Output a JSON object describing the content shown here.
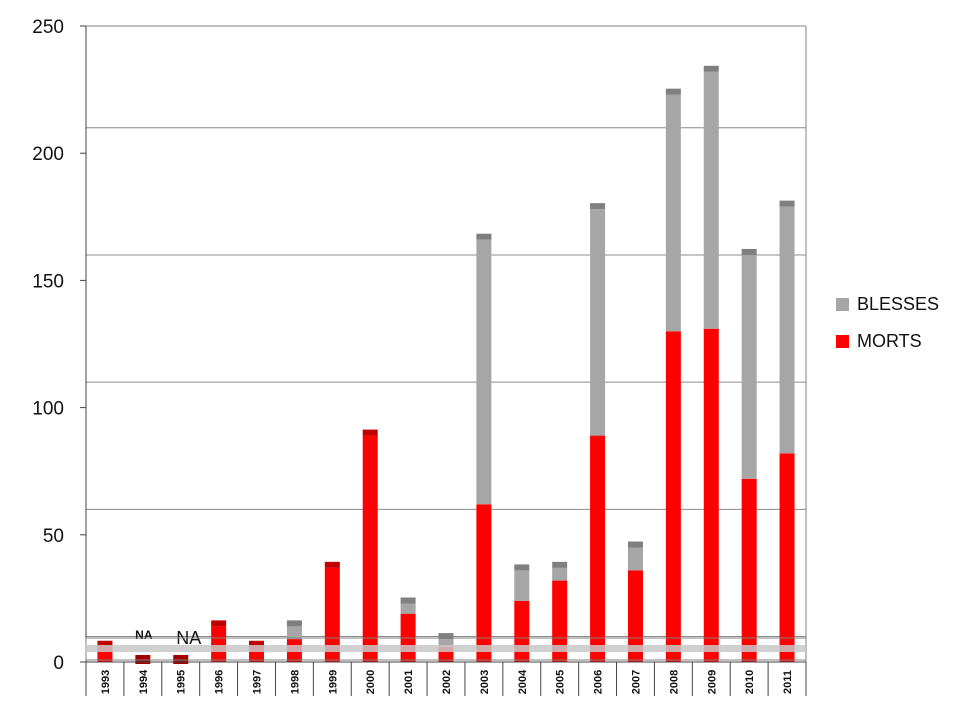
{
  "chart_data": {
    "type": "bar",
    "stacked": true,
    "categories": [
      "1993",
      "1994",
      "1995",
      "1996",
      "1997",
      "1998",
      "1999",
      "2000",
      "2001",
      "2002",
      "2003",
      "2004",
      "2005",
      "2006",
      "2007",
      "2008",
      "2009",
      "2010",
      "2011"
    ],
    "series": [
      {
        "name": "MORTS",
        "color": "#ff0000",
        "values": [
          6,
          null,
          null,
          14,
          6,
          9,
          37,
          89,
          19,
          6,
          62,
          24,
          32,
          89,
          36,
          130,
          131,
          72,
          82
        ]
      },
      {
        "name": "BLESSES",
        "color": "#a6a6a6",
        "values": [
          0,
          null,
          null,
          0,
          0,
          5,
          0,
          0,
          4,
          3,
          104,
          12,
          5,
          89,
          9,
          93,
          101,
          88,
          97
        ]
      }
    ],
    "annotations": [
      {
        "category": "1994",
        "text": "NA"
      },
      {
        "category": "1995",
        "text": "NA"
      }
    ],
    "yticks": [
      "0",
      "50",
      "100",
      "150",
      "200",
      "250"
    ],
    "ylim": [
      0,
      250
    ],
    "grid": true,
    "legend_position": "right"
  },
  "legend": {
    "items": [
      {
        "label": "BLESSES",
        "color": "#a6a6a6"
      },
      {
        "label": "MORTS",
        "color": "#ff0000"
      }
    ]
  }
}
